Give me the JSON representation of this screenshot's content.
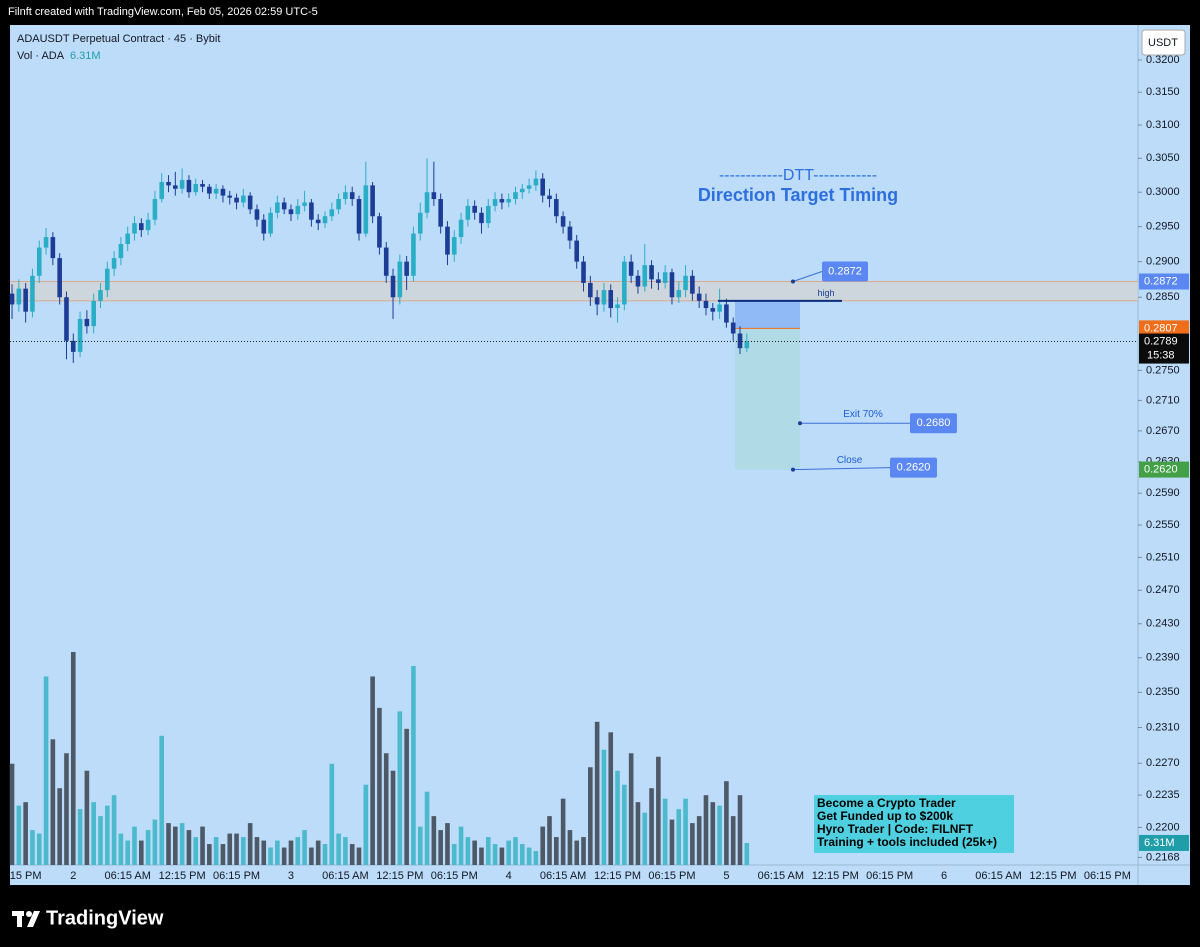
{
  "header": "Filnft created with TradingView.com, Feb 05, 2026 02:59 UTC-5",
  "footer_logo": "TradingView",
  "chart_data": {
    "type": "candlestick",
    "title": "ADAUSDT Perpetual Contract · 45 · Bybit",
    "currency": "USDT",
    "log_scale": true,
    "ylim": [
      0.216,
      0.3252
    ],
    "yticks": [
      {
        "value": 0.32,
        "label": "0.3200"
      },
      {
        "value": 0.315,
        "label": "0.3150"
      },
      {
        "value": 0.31,
        "label": "0.3100"
      },
      {
        "value": 0.305,
        "label": "0.3050"
      },
      {
        "value": 0.3,
        "label": "0.3000"
      },
      {
        "value": 0.295,
        "label": "0.2950"
      },
      {
        "value": 0.29,
        "label": "0.2900"
      },
      {
        "value": 0.285,
        "label": "0.2850"
      },
      {
        "value": 0.275,
        "label": "0.2750"
      },
      {
        "value": 0.271,
        "label": "0.2710"
      },
      {
        "value": 0.267,
        "label": "0.2670"
      },
      {
        "value": 0.263,
        "label": "0.2630"
      },
      {
        "value": 0.259,
        "label": "0.2590"
      },
      {
        "value": 0.255,
        "label": "0.2550"
      },
      {
        "value": 0.251,
        "label": "0.2510"
      },
      {
        "value": 0.247,
        "label": "0.2470"
      },
      {
        "value": 0.243,
        "label": "0.2430"
      },
      {
        "value": 0.239,
        "label": "0.2390"
      },
      {
        "value": 0.235,
        "label": "0.2350"
      },
      {
        "value": 0.231,
        "label": "0.2310"
      },
      {
        "value": 0.227,
        "label": "0.2270"
      },
      {
        "value": 0.2235,
        "label": "0.2235"
      },
      {
        "value": 0.22,
        "label": "0.2200"
      },
      {
        "value": 0.2168,
        "label": "0.2168"
      }
    ],
    "xlim": [
      -0.3,
      165.5
    ],
    "xticks": [
      {
        "value": 2,
        "label": "15 PM"
      },
      {
        "value": 9,
        "label": "2"
      },
      {
        "value": 17,
        "label": "06:15 AM"
      },
      {
        "value": 25,
        "label": "12:15 PM"
      },
      {
        "value": 33,
        "label": "06:15 PM"
      },
      {
        "value": 41,
        "label": "3"
      },
      {
        "value": 49,
        "label": "06:15 AM"
      },
      {
        "value": 57,
        "label": "12:15 PM"
      },
      {
        "value": 65,
        "label": "06:15 PM"
      },
      {
        "value": 73,
        "label": "4"
      },
      {
        "value": 81,
        "label": "06:15 AM"
      },
      {
        "value": 89,
        "label": "12:15 PM"
      },
      {
        "value": 97,
        "label": "06:15 PM"
      },
      {
        "value": 105,
        "label": "5"
      },
      {
        "value": 113,
        "label": "06:15 AM"
      },
      {
        "value": 121,
        "label": "12:15 PM"
      },
      {
        "value": 129,
        "label": "06:15 PM"
      },
      {
        "value": 137,
        "label": "6"
      },
      {
        "value": 145,
        "label": "06:15 AM"
      },
      {
        "value": 153,
        "label": "12:15 PM"
      },
      {
        "value": 161,
        "label": "06:15 PM"
      }
    ],
    "open": [
      0.2855,
      0.284,
      0.2862,
      0.283,
      0.288,
      0.292,
      0.2935,
      0.2905,
      0.285,
      0.279,
      0.2775,
      0.282,
      0.281,
      0.2845,
      0.286,
      0.289,
      0.2905,
      0.2925,
      0.294,
      0.2955,
      0.2945,
      0.296,
      0.299,
      0.3015,
      0.301,
      0.3005,
      0.3018,
      0.3,
      0.3012,
      0.3008,
      0.2998,
      0.3005,
      0.2995,
      0.2992,
      0.2985,
      0.2995,
      0.2975,
      0.296,
      0.294,
      0.297,
      0.2985,
      0.2975,
      0.2968,
      0.298,
      0.2985,
      0.296,
      0.2955,
      0.2965,
      0.2975,
      0.299,
      0.3,
      0.299,
      0.294,
      0.301,
      0.2965,
      0.292,
      0.288,
      0.285,
      0.29,
      0.288,
      0.294,
      0.297,
      0.3,
      0.299,
      0.295,
      0.291,
      0.2935,
      0.296,
      0.298,
      0.297,
      0.2955,
      0.298,
      0.299,
      0.2985,
      0.299,
      0.3,
      0.3005,
      0.301,
      0.302,
      0.2995,
      0.299,
      0.2965,
      0.295,
      0.293,
      0.29,
      0.287,
      0.285,
      0.284,
      0.286,
      0.2835,
      0.284,
      0.29,
      0.288,
      0.2865,
      0.2895,
      0.2875,
      0.287,
      0.2885,
      0.285,
      0.286,
      0.288,
      0.2855,
      0.2845,
      0.2835,
      0.283,
      0.284,
      0.2815,
      0.28,
      0.278
    ],
    "high": [
      0.2868,
      0.2875,
      0.287,
      0.289,
      0.293,
      0.2948,
      0.2942,
      0.2912,
      0.2858,
      0.28,
      0.283,
      0.2832,
      0.2855,
      0.287,
      0.29,
      0.2915,
      0.2935,
      0.295,
      0.2965,
      0.2962,
      0.297,
      0.3002,
      0.3028,
      0.3025,
      0.303,
      0.3035,
      0.3025,
      0.302,
      0.3018,
      0.3012,
      0.3012,
      0.301,
      0.3002,
      0.2998,
      0.3005,
      0.3,
      0.2982,
      0.2968,
      0.2978,
      0.2995,
      0.2992,
      0.2982,
      0.299,
      0.3002,
      0.299,
      0.2968,
      0.2972,
      0.2985,
      0.2998,
      0.301,
      0.3008,
      0.2995,
      0.3045,
      0.3015,
      0.297,
      0.2928,
      0.289,
      0.291,
      0.2908,
      0.295,
      0.2985,
      0.305,
      0.3045,
      0.2998,
      0.2958,
      0.2945,
      0.297,
      0.299,
      0.2988,
      0.2978,
      0.299,
      0.3,
      0.2998,
      0.2998,
      0.3008,
      0.3012,
      0.302,
      0.3032,
      0.3028,
      0.3005,
      0.2998,
      0.2972,
      0.2958,
      0.2938,
      0.2908,
      0.288,
      0.286,
      0.287,
      0.2868,
      0.285,
      0.2908,
      0.291,
      0.2888,
      0.2925,
      0.2902,
      0.2885,
      0.2895,
      0.289,
      0.2872,
      0.2895,
      0.2888,
      0.2865,
      0.2855,
      0.2842,
      0.2862,
      0.2848,
      0.2822,
      0.281,
      0.28
    ],
    "low": [
      0.282,
      0.283,
      0.2815,
      0.2822,
      0.287,
      0.291,
      0.2895,
      0.284,
      0.2765,
      0.276,
      0.2768,
      0.28,
      0.28,
      0.2835,
      0.285,
      0.288,
      0.2895,
      0.2915,
      0.293,
      0.2935,
      0.2938,
      0.2952,
      0.2985,
      0.3,
      0.2995,
      0.2998,
      0.2992,
      0.2995,
      0.3,
      0.299,
      0.299,
      0.2985,
      0.2982,
      0.2975,
      0.2978,
      0.2968,
      0.295,
      0.293,
      0.2935,
      0.2962,
      0.2968,
      0.2958,
      0.296,
      0.2972,
      0.295,
      0.2945,
      0.2948,
      0.2958,
      0.2968,
      0.2982,
      0.298,
      0.293,
      0.2935,
      0.2955,
      0.291,
      0.287,
      0.282,
      0.284,
      0.286,
      0.2872,
      0.293,
      0.2962,
      0.298,
      0.294,
      0.2895,
      0.29,
      0.2925,
      0.295,
      0.296,
      0.294,
      0.2948,
      0.2972,
      0.2975,
      0.2978,
      0.2982,
      0.299,
      0.2998,
      0.3002,
      0.2985,
      0.2978,
      0.2955,
      0.294,
      0.2918,
      0.289,
      0.2858,
      0.2838,
      0.2825,
      0.283,
      0.2822,
      0.2815,
      0.2832,
      0.287,
      0.2855,
      0.2858,
      0.2862,
      0.286,
      0.2862,
      0.284,
      0.2842,
      0.285,
      0.2845,
      0.2835,
      0.2825,
      0.2818,
      0.282,
      0.2808,
      0.279,
      0.2772,
      0.2775
    ],
    "close": [
      0.284,
      0.2862,
      0.283,
      0.288,
      0.292,
      0.2935,
      0.2905,
      0.285,
      0.279,
      0.2775,
      0.282,
      0.281,
      0.2845,
      0.286,
      0.289,
      0.2905,
      0.2925,
      0.294,
      0.2955,
      0.2945,
      0.296,
      0.299,
      0.3015,
      0.301,
      0.3005,
      0.3018,
      0.3,
      0.3012,
      0.3008,
      0.2998,
      0.3005,
      0.2995,
      0.2992,
      0.2985,
      0.2995,
      0.2975,
      0.296,
      0.294,
      0.297,
      0.2985,
      0.2975,
      0.2968,
      0.298,
      0.2985,
      0.296,
      0.2955,
      0.2965,
      0.2975,
      0.299,
      0.3,
      0.299,
      0.294,
      0.301,
      0.2965,
      0.292,
      0.288,
      0.285,
      0.29,
      0.288,
      0.294,
      0.297,
      0.3,
      0.299,
      0.295,
      0.291,
      0.2935,
      0.296,
      0.298,
      0.297,
      0.2955,
      0.298,
      0.299,
      0.2985,
      0.299,
      0.3,
      0.3005,
      0.301,
      0.302,
      0.2995,
      0.299,
      0.2965,
      0.295,
      0.293,
      0.29,
      0.287,
      0.285,
      0.284,
      0.286,
      0.2835,
      0.284,
      0.29,
      0.288,
      0.2865,
      0.2895,
      0.2875,
      0.287,
      0.2885,
      0.285,
      0.286,
      0.288,
      0.2855,
      0.2845,
      0.2835,
      0.283,
      0.284,
      0.2815,
      0.28,
      0.278,
      0.2789
    ],
    "up_color": "#2aaec6",
    "down_color": "#1c3c96",
    "volume": {
      "name": "Vol · ADA",
      "value_label": "6.31M",
      "ylim": [
        0,
        240
      ],
      "up_color": "#4cb9cd",
      "down_color": "#4e5968",
      "label_color": "#1f9eaa",
      "values": [
        29,
        17,
        18,
        10,
        9,
        54,
        36,
        22,
        32,
        61,
        16,
        27,
        18,
        14,
        17,
        20,
        9,
        7,
        11,
        7,
        10,
        13,
        37,
        12,
        11,
        12,
        10,
        8,
        11,
        6,
        8,
        6,
        9,
        9,
        8,
        12,
        8,
        7,
        5,
        7,
        5,
        7,
        8,
        10,
        5,
        7,
        6,
        29,
        9,
        8,
        6,
        5,
        23,
        54,
        45,
        32,
        27,
        44,
        39,
        57,
        11,
        21,
        14,
        10,
        12,
        6,
        11,
        8,
        7,
        5,
        8,
        6,
        5,
        7,
        8,
        6,
        5,
        4,
        11,
        14,
        8,
        19,
        10,
        7,
        8,
        28,
        41,
        33,
        38,
        27,
        23,
        32,
        18,
        15,
        22,
        31,
        19,
        13,
        16,
        19,
        12,
        14,
        20,
        18,
        17,
        24,
        14,
        20,
        6.31
      ]
    },
    "last_price": {
      "value": 0.2789,
      "label": "0.2789",
      "countdown": "15:38"
    },
    "zone": {
      "top": 0.2872,
      "bottom": 0.2845,
      "color": "#d3d3d3"
    },
    "high_line": {
      "label": "high",
      "value": 0.2845
    },
    "position": {
      "entry": 0.2807,
      "stop": 0.2845,
      "target": 0.262
    },
    "price_labels": [
      {
        "value": 0.2872,
        "label": "0.2872",
        "color": "#5a87f2"
      },
      {
        "value": 0.2807,
        "label": "0.2807",
        "color": "#f06d1a"
      },
      {
        "value": 0.262,
        "label": "0.2620",
        "color": "#43a047"
      }
    ],
    "callouts": [
      {
        "value": 0.2872,
        "label": "0.2872"
      },
      {
        "value": 0.268,
        "label": "0.2680",
        "text": "Exit 70%"
      },
      {
        "value": 0.262,
        "label": "0.2620",
        "text": "Close"
      }
    ],
    "banner": [
      "------------DTT------------",
      "Direction Target Timing"
    ],
    "ad": [
      "Become a Crypto Trader",
      "Get Funded up to $200k",
      "Hyro Trader | Code: FILNFT",
      "Training + tools included (25k+)"
    ]
  }
}
